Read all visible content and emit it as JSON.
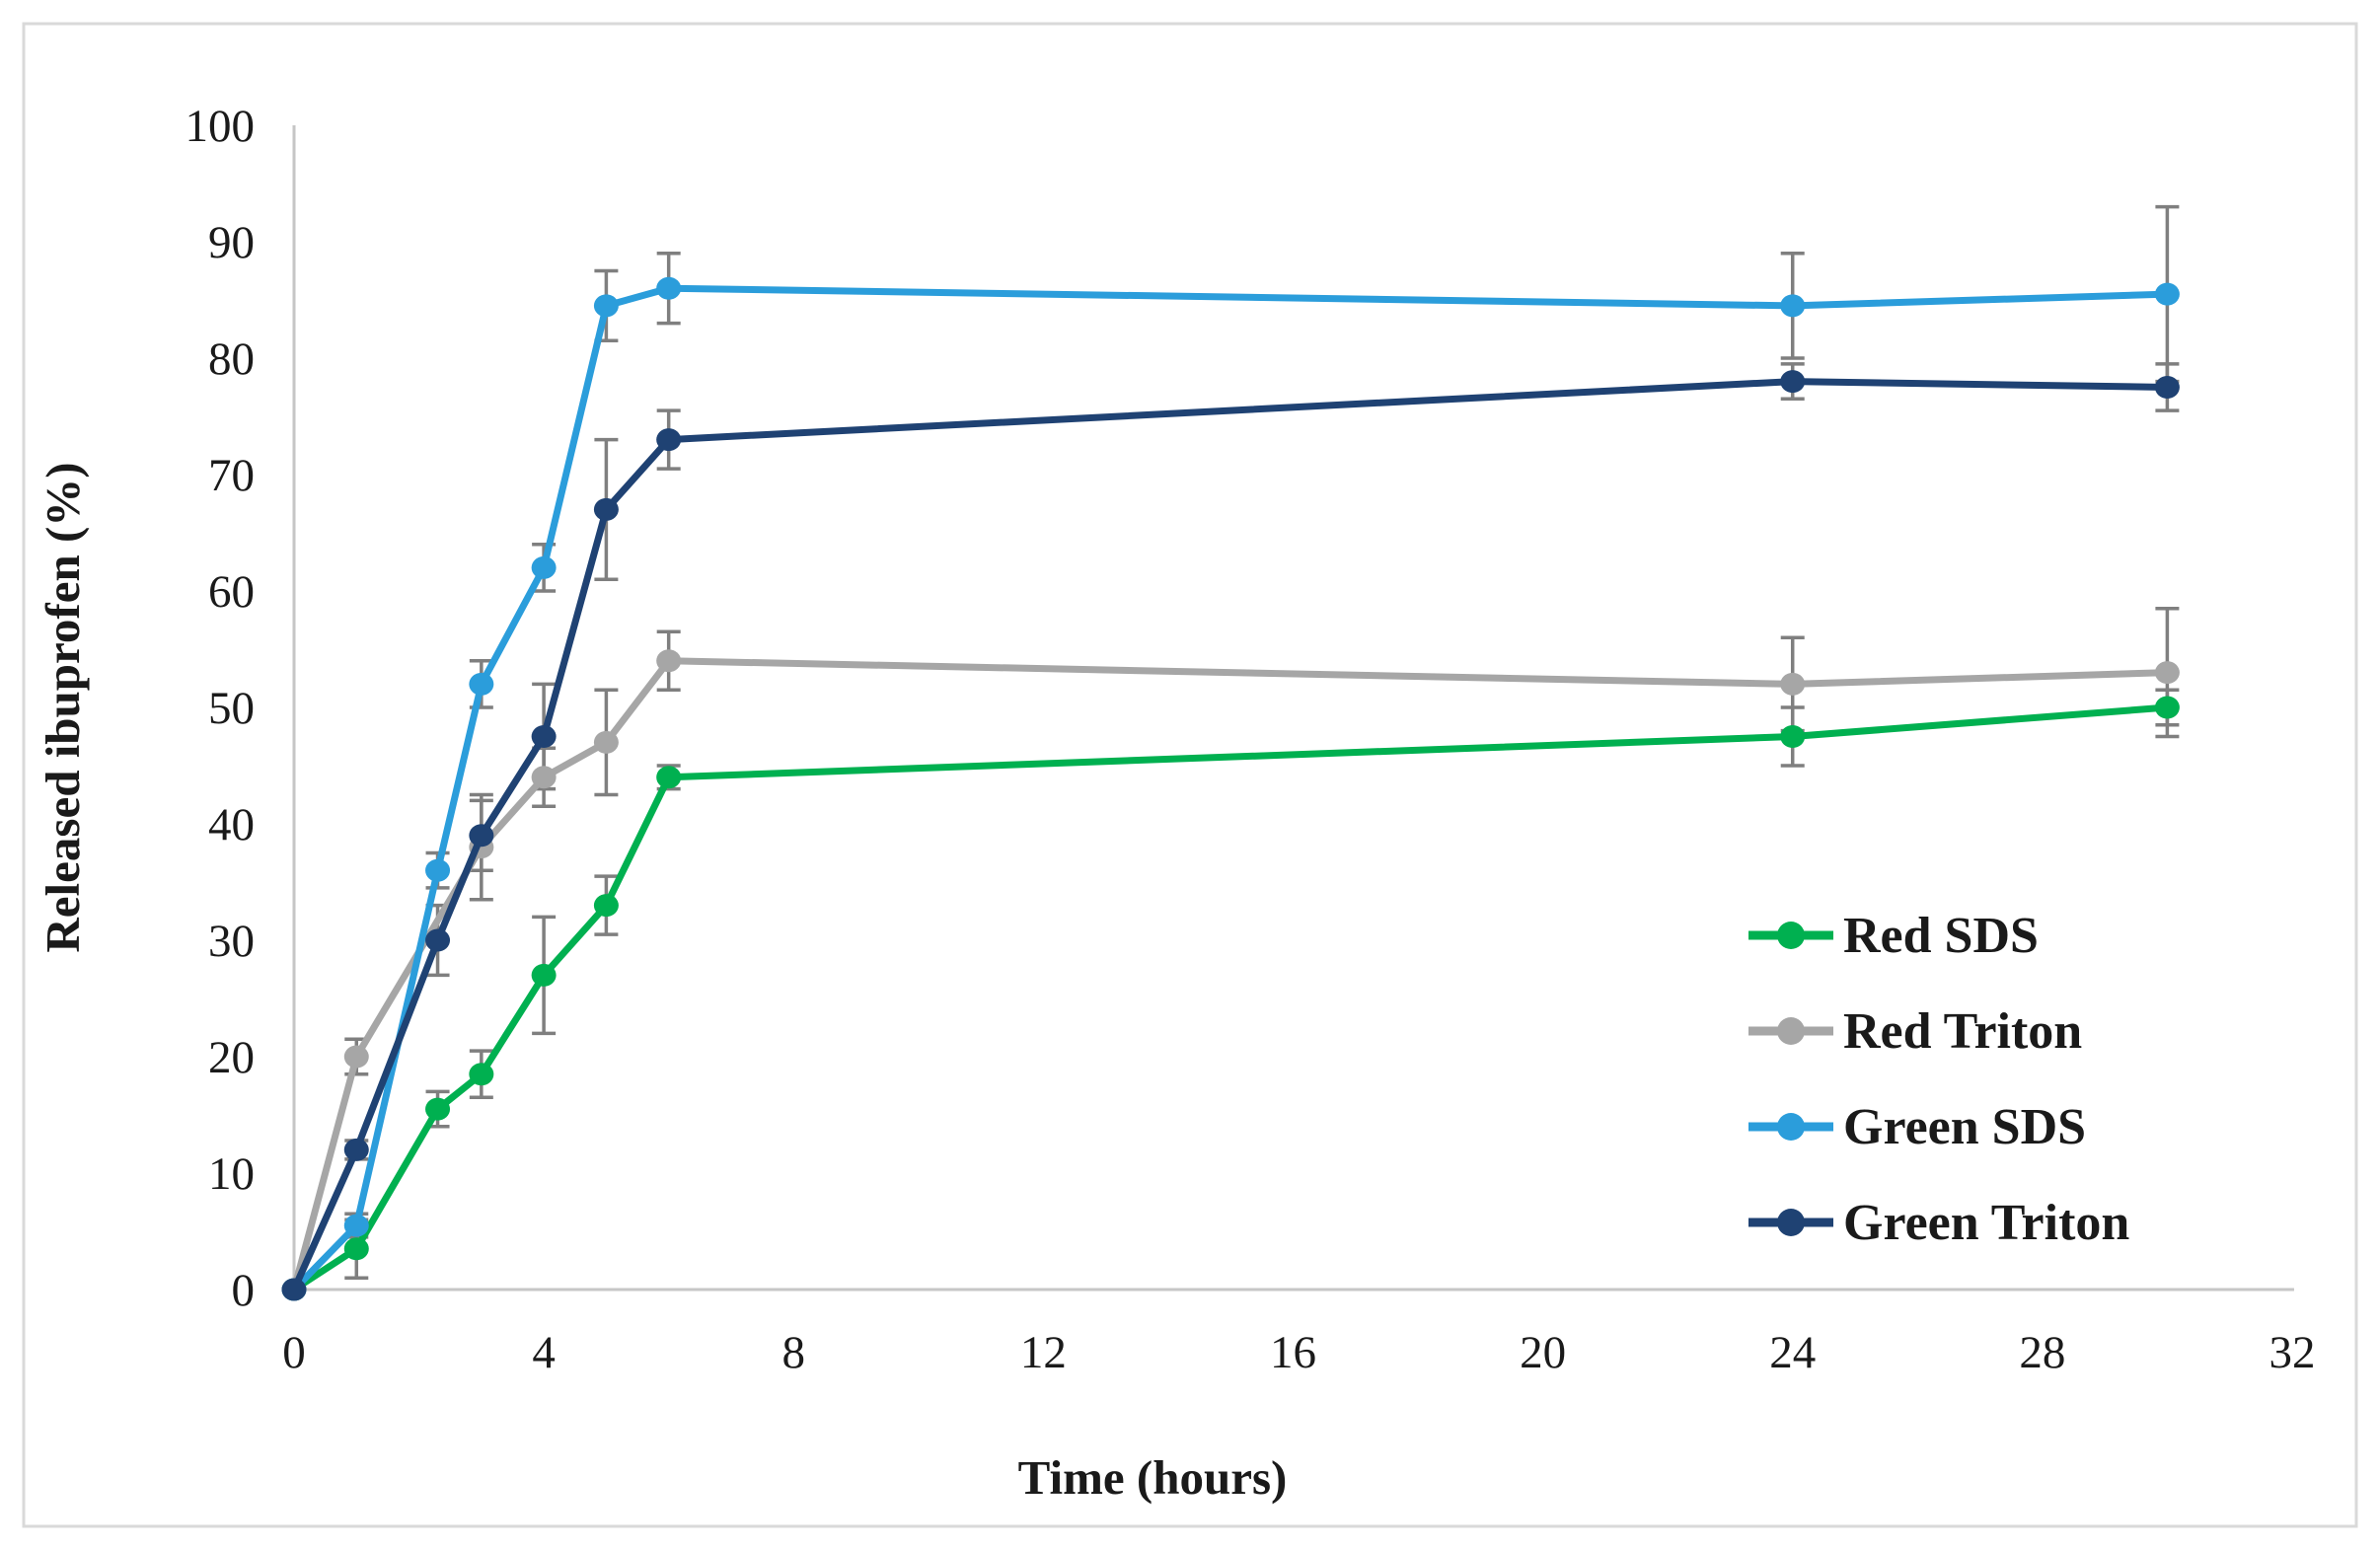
{
  "figure": {
    "background_color": "#ffffff",
    "border_color": "#d9d9d9",
    "axis_color": "#c6c6c6",
    "error_bar_color": "#7f7f7f",
    "text_color": "#1a1a1a"
  },
  "chart_data": {
    "type": "line",
    "title": "",
    "xlabel": "Time (hours)",
    "ylabel": "Released ibuprofen (%)",
    "xlim": [
      0,
      32
    ],
    "ylim": [
      0,
      100
    ],
    "x_ticks": [
      0,
      4,
      8,
      12,
      16,
      20,
      24,
      28,
      32
    ],
    "y_ticks": [
      0,
      10,
      20,
      30,
      40,
      50,
      60,
      70,
      80,
      90,
      100
    ],
    "grid": false,
    "error_bars": true,
    "legend_position": "right-middle",
    "marker": "circle",
    "series": [
      {
        "name": "Red SDS",
        "color": "#00B050",
        "x": [
          0,
          1,
          2.3,
          3,
          4,
          5,
          6,
          24,
          30
        ],
        "y": [
          0,
          3.5,
          15.5,
          18.5,
          27,
          33,
          44,
          47.5,
          50
        ],
        "yerr": [
          0,
          2.5,
          1.5,
          2,
          5,
          2.5,
          1,
          2.5,
          1.5
        ]
      },
      {
        "name": "Red Triton",
        "color": "#A6A6A6",
        "x": [
          0,
          1,
          3,
          4,
          5,
          6,
          24,
          30
        ],
        "y": [
          0,
          20,
          38,
          44,
          47,
          54,
          52,
          53
        ],
        "yerr": [
          0,
          1.5,
          4.5,
          2.5,
          4.5,
          2.5,
          4,
          5.5
        ]
      },
      {
        "name": "Green SDS",
        "color": "#2B9DDB",
        "x": [
          0,
          1,
          2.3,
          3,
          4,
          5,
          6,
          24,
          30
        ],
        "y": [
          0,
          5.5,
          36,
          52,
          62,
          84.5,
          86,
          84.5,
          85.5
        ],
        "yerr": [
          0,
          1,
          1.5,
          2,
          2,
          3,
          3,
          4.5,
          7.5
        ]
      },
      {
        "name": "Green Triton",
        "color": "#1F4273",
        "x": [
          0,
          1,
          2.3,
          3,
          4,
          5,
          6,
          24,
          30
        ],
        "y": [
          0,
          12,
          30,
          39,
          47.5,
          67,
          73,
          78,
          77.5
        ],
        "yerr": [
          0,
          0.8,
          3,
          3,
          4.5,
          6,
          2.5,
          1.5,
          2
        ]
      }
    ]
  }
}
